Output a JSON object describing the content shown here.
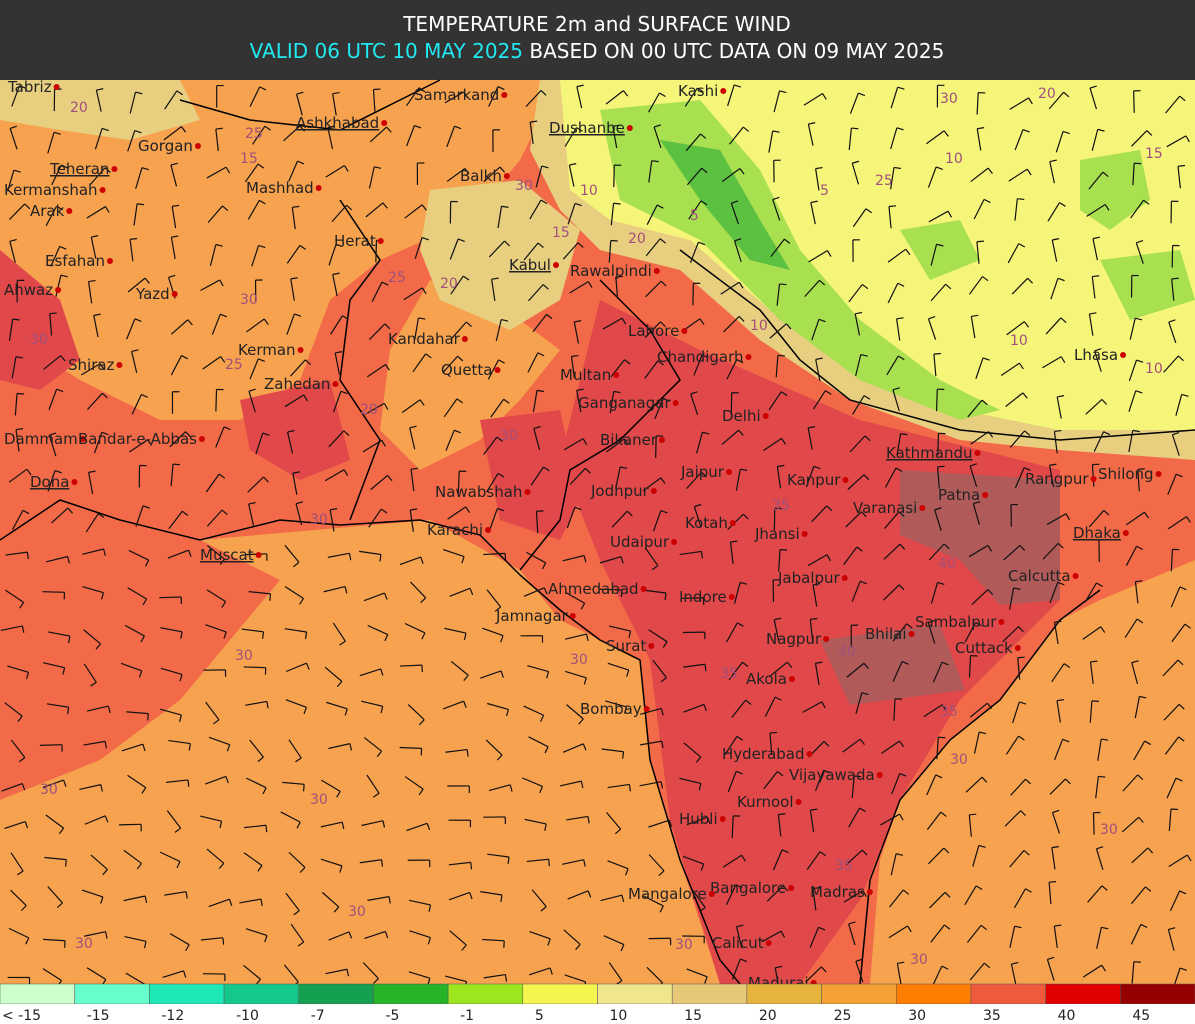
{
  "header": {
    "title": "TEMPERATURE 2m and SURFACE WIND",
    "valid": "VALID 06 UTC 10 MAY 2025",
    "based": "BASED ON 00 UTC DATA ON 09 MAY 2025"
  },
  "cities": [
    "Tabriz",
    "Samarkand",
    "Kashi",
    "Ashkhabad",
    "Dushanbe",
    "Gorgan",
    "Teheran",
    "Balkh",
    "Kermanshah",
    "Mashhad",
    "Arak",
    "Herat",
    "Kabul",
    "Rawalpindi",
    "Esfahan",
    "Ahwaz",
    "Yazd",
    "Lahore",
    "Kandahar",
    "Chandigarh",
    "Lhasa",
    "Shiraz",
    "Kerman",
    "Zahedan",
    "Quetta",
    "Multan",
    "Ganganagar",
    "Delhi",
    "Dammam",
    "Bandar-e-Abbas",
    "Bikaner",
    "Kathmandu",
    "Shilong",
    "Rangpur",
    "Jaipur",
    "Kanpur",
    "Doha",
    "Nawabshah",
    "Jodhpur",
    "Patna",
    "Varanasi",
    "Kotah",
    "Jhansi",
    "Karachi",
    "Udaipur",
    "Dhaka",
    "Muscat",
    "Calcutta",
    "Jabalpur",
    "Ahmedabad",
    "Indore",
    "Jamnagar",
    "Sambalpur",
    "Bhilai",
    "Nagpur",
    "Surat",
    "Cuttack",
    "Akola",
    "Bombay",
    "Hyderabad",
    "Vijayawada",
    "Kurnool",
    "Hubli",
    "Bangalore",
    "Madras",
    "Mangalore",
    "Calicut",
    "Madurai"
  ],
  "contour_labels": [
    20,
    25,
    15,
    30,
    10,
    15,
    20,
    25,
    20,
    5,
    5,
    10,
    25,
    30,
    20,
    15,
    10,
    10,
    10,
    30,
    30,
    35,
    40,
    40,
    35,
    35,
    30,
    30,
    30,
    30,
    30,
    30,
    30,
    35,
    30,
    30,
    30,
    30,
    25,
    30,
    20
  ],
  "legend": {
    "labels": [
      "< -15",
      "-15",
      "-12",
      "-10",
      "-7",
      "-5",
      "-1",
      "5",
      "10",
      "15",
      "20",
      "25",
      "30",
      "35",
      "40",
      "45"
    ],
    "colors": [
      "#ccffcc",
      "#66ffcc",
      "#1ee8b4",
      "#14c88c",
      "#14a050",
      "#28b428",
      "#9be61e",
      "#f5f550",
      "#f0e68c",
      "#e6c878",
      "#e6b43c",
      "#f5a032",
      "#ff7d00",
      "#f05a3c",
      "#e00000",
      "#960000"
    ]
  }
}
